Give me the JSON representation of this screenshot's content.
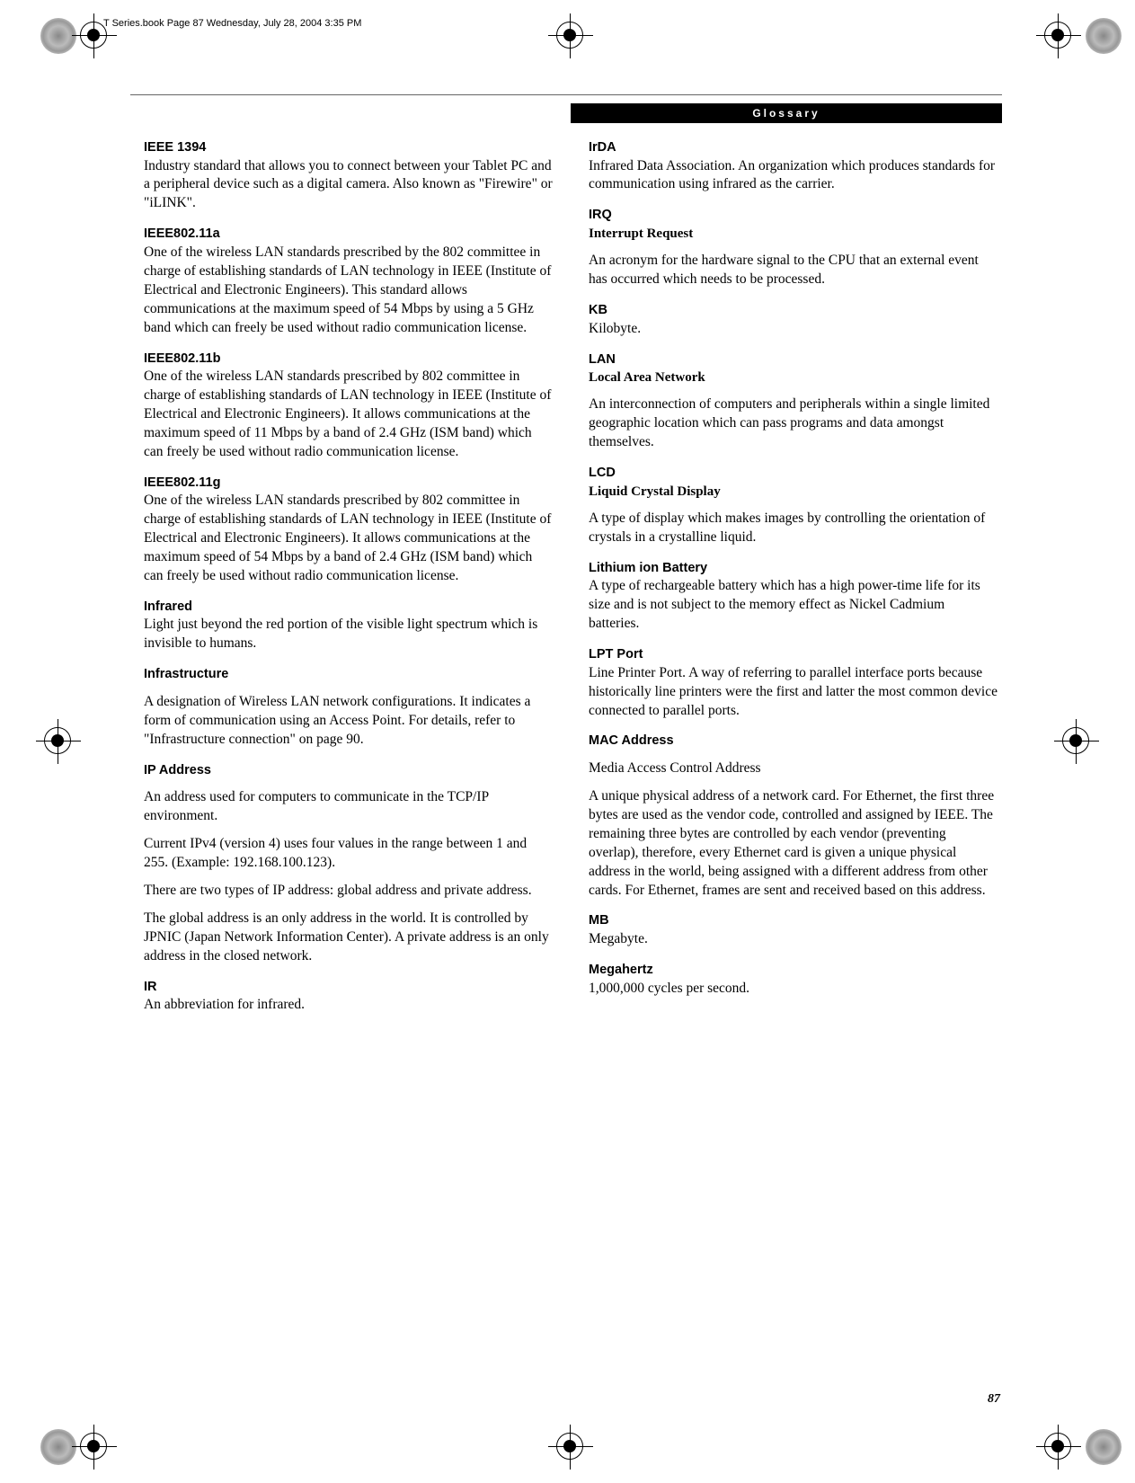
{
  "header": "T Series.book  Page 87  Wednesday, July 28, 2004  3:35 PM",
  "sectionTitle": "Glossary",
  "pageNumber": "87",
  "left": [
    {
      "term": "IEEE 1394",
      "def": "Industry standard that allows you to connect between your Tablet PC and a peripheral device such as a digital camera. Also known as \"Firewire\" or \"iLINK\"."
    },
    {
      "term": "IEEE802.11a",
      "def": "One of the wireless LAN standards prescribed by the 802 committee in charge of establishing standards of LAN technology in IEEE (Institute of Electrical and Electronic Engineers). This standard allows communications at the maximum speed of 54 Mbps by using a 5 GHz band which can freely be used without radio communication license."
    },
    {
      "term": "IEEE802.11b",
      "def": "One of the wireless LAN standards prescribed by 802 committee in charge of establishing standards of LAN technology in IEEE (Institute of Electrical and Electronic Engineers). It allows communications at the maximum speed of 11 Mbps by a band of 2.4 GHz (ISM band) which can freely be used without radio communication license."
    },
    {
      "term": "IEEE802.11g",
      "def": "One of the wireless LAN standards prescribed by 802 committee in charge of establishing standards of LAN technology in IEEE (Institute of Electrical and Electronic Engineers). It allows communications at the maximum speed of 54 Mbps by a band of 2.4 GHz (ISM band) which can freely be used without radio communication license."
    },
    {
      "term": "Infrared",
      "def": "Light just beyond the red portion of the visible light spectrum which is invisible to humans."
    },
    {
      "term": "Infrastructure",
      "paras": [
        "A designation of Wireless LAN network configurations. It indicates a form of communication using an Access Point. For details, refer to \"Infrastructure connection\" on page 90."
      ]
    },
    {
      "term": "IP Address",
      "paras": [
        "An address used for computers to communicate in the TCP/IP environment.",
        "Current IPv4 (version 4) uses four values in the range between 1 and 255. (Example: 192.168.100.123).",
        "There are two types of IP address: global address and private address.",
        "The global address is an only address in the world. It is controlled by JPNIC (Japan Network Information Center). A private address is an only address in the closed network."
      ]
    },
    {
      "term": "IR",
      "def": "An abbreviation for infrared."
    }
  ],
  "right": [
    {
      "term": "IrDA",
      "def": "Infrared Data Association. An organization which produces standards for communication using infrared as the carrier."
    },
    {
      "term": "IRQ",
      "sub": "Interrupt Request",
      "paras": [
        "An acronym for the hardware signal to the CPU that an external event has occurred which needs to be processed."
      ]
    },
    {
      "term": "KB",
      "def": "Kilobyte."
    },
    {
      "term": "LAN",
      "sub": "Local Area Network",
      "paras": [
        "An interconnection of computers and peripherals within a single limited geographic location which can pass programs and data amongst themselves."
      ]
    },
    {
      "term": "LCD",
      "sub": "Liquid Crystal Display",
      "paras": [
        "A type of display which makes images by controlling the orientation of crystals in a crystalline liquid."
      ]
    },
    {
      "term": "Lithium ion Battery",
      "def": "A type of rechargeable battery which has a high power-time life for its size and is not subject to the memory effect as Nickel Cadmium batteries."
    },
    {
      "term": "LPT Port",
      "def": "Line Printer Port. A way of referring to parallel interface ports because historically line printers were the first and latter the most common device connected to parallel ports."
    },
    {
      "term": "MAC Address",
      "paras": [
        "Media Access Control Address",
        "A unique physical address of a network card. For Ethernet, the first three bytes are used as the vendor code, controlled and assigned by IEEE. The remaining three bytes are controlled by each vendor (preventing overlap), therefore, every Ethernet card is given a unique physical address in the world, being assigned with a different address from other cards. For Ethernet, frames are sent and received based on this address."
      ]
    },
    {
      "term": "MB",
      "def": "Megabyte."
    },
    {
      "term": "Megahertz",
      "def": "1,000,000 cycles per second."
    }
  ]
}
